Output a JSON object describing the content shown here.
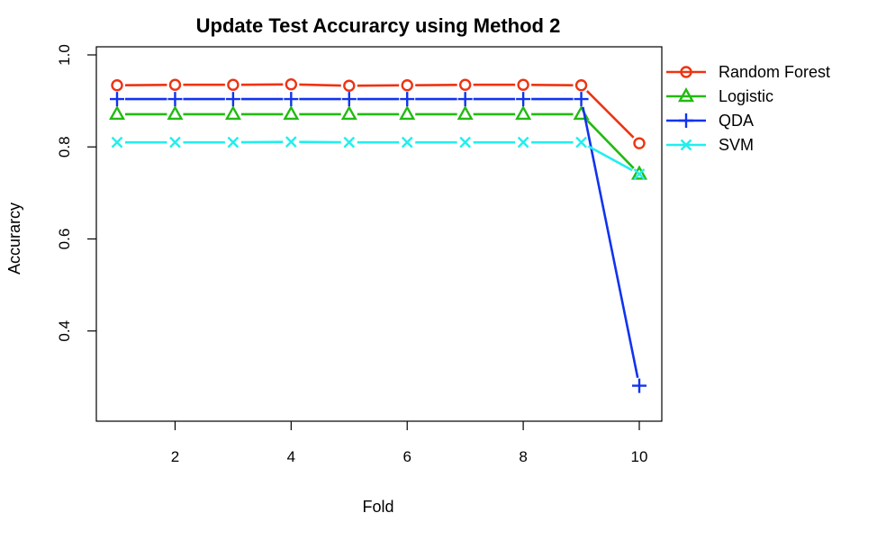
{
  "chart_data": {
    "type": "line",
    "title": "Update Test Accurarcy using Method 2",
    "xlabel": "Fold",
    "ylabel": "Accurarcy",
    "x": [
      1,
      2,
      3,
      4,
      5,
      6,
      7,
      8,
      9,
      10
    ],
    "xlim": [
      1,
      10
    ],
    "ylim": [
      0.2,
      1.0
    ],
    "xticks": [
      "2",
      "4",
      "6",
      "8",
      "10"
    ],
    "yticks": [
      "0.4",
      "0.6",
      "0.8",
      "1.0"
    ],
    "grid": false,
    "legend_position": "right",
    "series": [
      {
        "name": "Random Forest",
        "color": "#ee3311",
        "marker": "circle",
        "values": [
          0.934,
          0.935,
          0.935,
          0.936,
          0.933,
          0.934,
          0.935,
          0.935,
          0.934,
          0.808
        ]
      },
      {
        "name": "Logistic",
        "color": "#22bb11",
        "marker": "triangle",
        "values": [
          0.871,
          0.871,
          0.871,
          0.871,
          0.871,
          0.871,
          0.871,
          0.871,
          0.871,
          0.741
        ]
      },
      {
        "name": "QDA",
        "color": "#1133ee",
        "marker": "plus",
        "values": [
          0.904,
          0.904,
          0.904,
          0.904,
          0.904,
          0.904,
          0.904,
          0.904,
          0.904,
          0.281
        ]
      },
      {
        "name": "SVM",
        "color": "#22eeee",
        "marker": "cross",
        "values": [
          0.81,
          0.81,
          0.81,
          0.811,
          0.81,
          0.81,
          0.81,
          0.81,
          0.81,
          0.741
        ]
      }
    ]
  }
}
